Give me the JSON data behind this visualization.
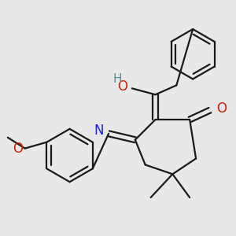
{
  "background_color": "#e8e8e8",
  "bond_color": "#1a1a1a",
  "bond_width": 1.6,
  "figsize": [
    3.0,
    3.0
  ],
  "dpi": 100,
  "xlim": [
    0,
    300
  ],
  "ylim": [
    0,
    300
  ]
}
